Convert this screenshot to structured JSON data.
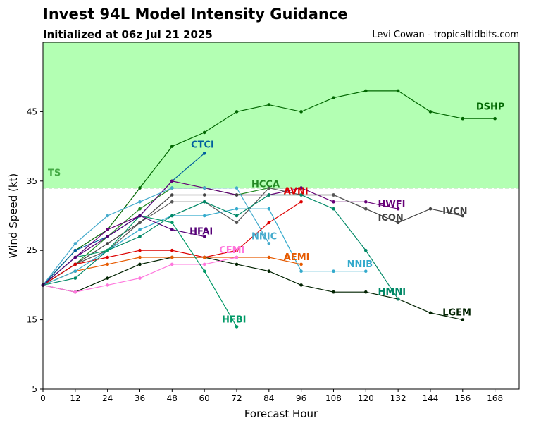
{
  "header": {
    "title": "Invest 94L Model Intensity Guidance",
    "subtitle": "Initialized at 06z Jul 21 2025",
    "credit": "Levi Cowan - tropicaltidbits.com"
  },
  "chart_data": {
    "type": "line",
    "title": "Invest 94L Model Intensity Guidance",
    "xlabel": "Forecast Hour",
    "ylabel": "Wind Speed (kt)",
    "xlim": [
      0,
      177
    ],
    "ylim": [
      5,
      55
    ],
    "xticks": [
      0,
      12,
      24,
      36,
      48,
      60,
      72,
      84,
      96,
      108,
      120,
      132,
      144,
      156,
      168
    ],
    "yticks": [
      5,
      15,
      25,
      35,
      45
    ],
    "ts_threshold": {
      "label": "TS",
      "value": 34,
      "fill_color": "#b3ffb3",
      "line_color": "#55bb55",
      "label_color": "#44aa44"
    },
    "series": [
      {
        "name": "DSHP",
        "color": "#006600",
        "x": [
          0,
          12,
          24,
          36,
          48,
          60,
          72,
          84,
          96,
          108,
          120,
          132,
          144,
          156,
          168
        ],
        "y": [
          20,
          25,
          28,
          34,
          40,
          42,
          45,
          46,
          45,
          47,
          48,
          48,
          45,
          44,
          44
        ]
      },
      {
        "name": "LGEM",
        "color": "#002200",
        "x": [
          0,
          12,
          24,
          36,
          48,
          60,
          72,
          84,
          96,
          108,
          120,
          132,
          144,
          156
        ],
        "y": [
          20,
          19,
          21,
          23,
          24,
          24,
          23,
          22,
          20,
          19,
          19,
          18,
          16,
          15
        ]
      },
      {
        "name": "CTCI",
        "color": "#005f9f",
        "x": [
          0,
          12,
          24,
          36,
          48,
          60
        ],
        "y": [
          20,
          25,
          27,
          30,
          35,
          39
        ]
      },
      {
        "name": "HCCA",
        "color": "#228822",
        "x": [
          0,
          12,
          24,
          36,
          48,
          60,
          72,
          84,
          96
        ],
        "y": [
          20,
          23,
          27,
          31,
          34,
          34,
          33,
          34,
          34
        ]
      },
      {
        "name": "HWFI",
        "color": "#660077",
        "x": [
          0,
          12,
          24,
          36,
          48,
          60,
          72,
          84,
          96,
          108,
          120,
          132
        ],
        "y": [
          20,
          24,
          28,
          30,
          35,
          34,
          33,
          33,
          34,
          32,
          32,
          31
        ]
      },
      {
        "name": "IVCN",
        "color": "#444444",
        "x": [
          0,
          12,
          24,
          36,
          48,
          60,
          72,
          84,
          96,
          108,
          120,
          132,
          144,
          156
        ],
        "y": [
          20,
          23,
          26,
          29,
          33,
          33,
          33,
          33,
          33,
          33,
          31,
          29,
          31,
          30
        ]
      },
      {
        "name": "ICON",
        "color": "#555555",
        "x": [
          0,
          12,
          24,
          36,
          48,
          60,
          72,
          84,
          96,
          108,
          120
        ],
        "y": [
          20,
          23,
          25,
          29,
          32,
          32,
          29,
          34,
          33,
          33,
          31
        ]
      },
      {
        "name": "AVNI",
        "color": "#dd0000",
        "x": [
          0,
          12,
          24,
          36,
          48,
          60,
          72,
          84,
          96
        ],
        "y": [
          20,
          23,
          24,
          25,
          25,
          24,
          25,
          29,
          32
        ]
      },
      {
        "name": "AEMI",
        "color": "#e65a00",
        "x": [
          0,
          12,
          24,
          36,
          48,
          60,
          72,
          84,
          96
        ],
        "y": [
          20,
          22,
          23,
          24,
          24,
          24,
          24,
          24,
          23
        ]
      },
      {
        "name": "CEMI",
        "color": "#ff77dd",
        "x": [
          0,
          12,
          24,
          36,
          48,
          60,
          72
        ],
        "y": [
          20,
          19,
          20,
          21,
          23,
          23,
          24
        ]
      },
      {
        "name": "NNIC",
        "color": "#44aacc",
        "x": [
          0,
          12,
          24,
          36,
          48,
          60,
          72,
          84
        ],
        "y": [
          20,
          26,
          30,
          32,
          34,
          34,
          34,
          26
        ]
      },
      {
        "name": "NNIB",
        "color": "#33aacc",
        "x": [
          0,
          12,
          24,
          36,
          48,
          60,
          72,
          84,
          96,
          108,
          120
        ],
        "y": [
          20,
          22,
          25,
          28,
          30,
          30,
          31,
          31,
          22,
          22,
          22
        ]
      },
      {
        "name": "HMNI",
        "color": "#008866",
        "x": [
          0,
          12,
          24,
          36,
          48,
          60,
          72,
          84,
          96,
          108,
          120,
          132
        ],
        "y": [
          20,
          21,
          25,
          27,
          30,
          32,
          30,
          33,
          33,
          31,
          25,
          18
        ]
      },
      {
        "name": "HFBI",
        "color": "#009966",
        "x": [
          0,
          12,
          24,
          36,
          48,
          60,
          72
        ],
        "y": [
          20,
          24,
          25,
          30,
          29,
          22,
          14
        ]
      },
      {
        "name": "HFAI",
        "color": "#550077",
        "x": [
          0,
          12,
          24,
          36,
          48,
          60
        ],
        "y": [
          20,
          24,
          27,
          30,
          28,
          27
        ]
      }
    ],
    "labels": [
      {
        "text": "DSHP",
        "color": "#006600",
        "x": 161,
        "y": 45.3
      },
      {
        "text": "CTCI",
        "color": "#005f9f",
        "x": 55,
        "y": 39.8
      },
      {
        "text": "HCCA",
        "color": "#228822",
        "x": 77.5,
        "y": 34.1
      },
      {
        "text": "AVNI",
        "color": "#dd0000",
        "x": 89.5,
        "y": 33.1
      },
      {
        "text": "HWFI",
        "color": "#660077",
        "x": 124.5,
        "y": 31.2
      },
      {
        "text": "IVCN",
        "color": "#444444",
        "x": 148.5,
        "y": 30.2
      },
      {
        "text": "ICON",
        "color": "#444444",
        "x": 124.5,
        "y": 29.3
      },
      {
        "text": "HFAI",
        "color": "#550077",
        "x": 54.5,
        "y": 27.3
      },
      {
        "text": "NNIC",
        "color": "#44aacc",
        "x": 77.5,
        "y": 26.6
      },
      {
        "text": "CEMI",
        "color": "#ff77dd",
        "x": 65.5,
        "y": 24.6
      },
      {
        "text": "AEMI",
        "color": "#e65a00",
        "x": 89.5,
        "y": 23.6
      },
      {
        "text": "NNIB",
        "color": "#33aacc",
        "x": 113,
        "y": 22.6
      },
      {
        "text": "HMNI",
        "color": "#008866",
        "x": 124.5,
        "y": 18.6
      },
      {
        "text": "LGEM",
        "color": "#002200",
        "x": 148.5,
        "y": 15.6
      },
      {
        "text": "HFBI",
        "color": "#009966",
        "x": 66.5,
        "y": 14.6
      }
    ]
  }
}
